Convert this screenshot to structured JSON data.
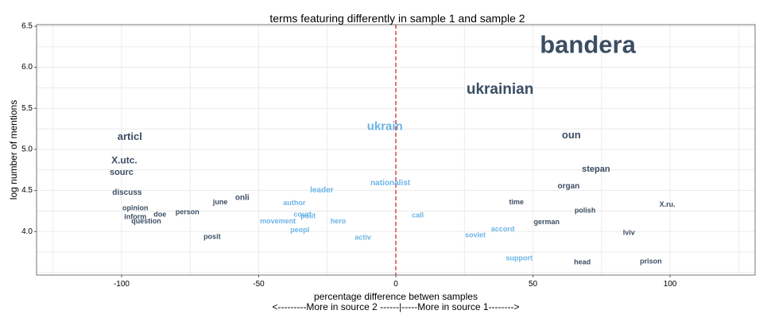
{
  "chart_data": {
    "type": "scatter",
    "title": "terms featuring differently in sample 1 and sample 2",
    "xlabel": "percentage difference betwen samples",
    "xlabel2": "<---------More in source 2 ------|-----More in source 1-------->",
    "ylabel": "log number of mentions",
    "xlim": [
      -131,
      131
    ],
    "ylim": [
      3.47,
      6.52
    ],
    "x_ticks": [
      -100,
      -50,
      0,
      50,
      100
    ],
    "x_tick_labels": [
      "-100",
      "-50",
      "0",
      "50",
      "100"
    ],
    "y_ticks": [
      4.0,
      4.5,
      5.0,
      5.5,
      6.0,
      6.5
    ],
    "y_tick_labels": [
      "4.0",
      "4.5",
      "5.0",
      "5.5",
      "6.0",
      "6.5"
    ],
    "grid": true,
    "reference_line": {
      "x": 0,
      "color": "#cc0000",
      "style": "dashed"
    },
    "colors": {
      "dark": "#3b4e63",
      "light": "#6cb4e6",
      "frame": "#555555",
      "grid": "#e6e6e6"
    },
    "points": [
      {
        "label": "bandera",
        "x": 70,
        "y": 6.28,
        "size": 31,
        "color": "dark"
      },
      {
        "label": "ukrainian",
        "x": 38,
        "y": 5.73,
        "size": 19,
        "color": "dark"
      },
      {
        "label": "ukrain",
        "x": -4,
        "y": 5.28,
        "size": 15,
        "color": "light"
      },
      {
        "label": "articl",
        "x": -97,
        "y": 5.16,
        "size": 13,
        "color": "dark"
      },
      {
        "label": "oun",
        "x": 64,
        "y": 5.18,
        "size": 13,
        "color": "dark"
      },
      {
        "label": "X.utc.",
        "x": -99,
        "y": 4.87,
        "size": 12,
        "color": "dark"
      },
      {
        "label": "sourc",
        "x": -100,
        "y": 4.72,
        "size": 11,
        "color": "dark"
      },
      {
        "label": "stepan",
        "x": 73,
        "y": 4.76,
        "size": 11,
        "color": "dark"
      },
      {
        "label": "organ",
        "x": 63,
        "y": 4.55,
        "size": 10,
        "color": "dark"
      },
      {
        "label": "discuss",
        "x": -98,
        "y": 4.47,
        "size": 10,
        "color": "dark"
      },
      {
        "label": "leader",
        "x": -27,
        "y": 4.5,
        "size": 10,
        "color": "light"
      },
      {
        "label": "nationalist",
        "x": -2,
        "y": 4.59,
        "size": 10,
        "color": "light"
      },
      {
        "label": "onli",
        "x": -56,
        "y": 4.41,
        "size": 10,
        "color": "dark"
      },
      {
        "label": "june",
        "x": -64,
        "y": 4.36,
        "size": 9,
        "color": "dark"
      },
      {
        "label": "author",
        "x": -37,
        "y": 4.35,
        "size": 9,
        "color": "light"
      },
      {
        "label": "time",
        "x": 44,
        "y": 4.36,
        "size": 9,
        "color": "dark"
      },
      {
        "label": "X.ru.",
        "x": 99,
        "y": 4.33,
        "size": 9,
        "color": "dark"
      },
      {
        "label": "opinion",
        "x": -95,
        "y": 4.29,
        "size": 9,
        "color": "dark"
      },
      {
        "label": "polish",
        "x": 69,
        "y": 4.26,
        "size": 9,
        "color": "dark"
      },
      {
        "label": "person",
        "x": -76,
        "y": 4.24,
        "size": 9,
        "color": "dark"
      },
      {
        "label": "court",
        "x": -34,
        "y": 4.21,
        "size": 9,
        "color": "light"
      },
      {
        "label": "doe",
        "x": -86,
        "y": 4.21,
        "size": 9,
        "color": "dark"
      },
      {
        "label": "polit",
        "x": -32,
        "y": 4.19,
        "size": 9,
        "color": "light"
      },
      {
        "label": "call",
        "x": 8,
        "y": 4.2,
        "size": 9,
        "color": "light"
      },
      {
        "label": "inform",
        "x": -95,
        "y": 4.18,
        "size": 9,
        "color": "dark"
      },
      {
        "label": "question",
        "x": -91,
        "y": 4.13,
        "size": 9,
        "color": "dark"
      },
      {
        "label": "movement",
        "x": -43,
        "y": 4.13,
        "size": 9,
        "color": "light"
      },
      {
        "label": "hero",
        "x": -21,
        "y": 4.13,
        "size": 9,
        "color": "light"
      },
      {
        "label": "german",
        "x": 55,
        "y": 4.12,
        "size": 9,
        "color": "dark"
      },
      {
        "label": "accord",
        "x": 39,
        "y": 4.03,
        "size": 9,
        "color": "light"
      },
      {
        "label": "peopl",
        "x": -35,
        "y": 4.02,
        "size": 9,
        "color": "light"
      },
      {
        "label": "lviv",
        "x": 85,
        "y": 3.99,
        "size": 9,
        "color": "dark"
      },
      {
        "label": "soviet",
        "x": 29,
        "y": 3.96,
        "size": 9,
        "color": "light"
      },
      {
        "label": "posit",
        "x": -67,
        "y": 3.94,
        "size": 9,
        "color": "dark"
      },
      {
        "label": "activ",
        "x": -12,
        "y": 3.93,
        "size": 9,
        "color": "light"
      },
      {
        "label": "support",
        "x": 45,
        "y": 3.68,
        "size": 9,
        "color": "light"
      },
      {
        "label": "head",
        "x": 68,
        "y": 3.63,
        "size": 9,
        "color": "dark"
      },
      {
        "label": "prison",
        "x": 93,
        "y": 3.64,
        "size": 9,
        "color": "dark"
      }
    ]
  }
}
